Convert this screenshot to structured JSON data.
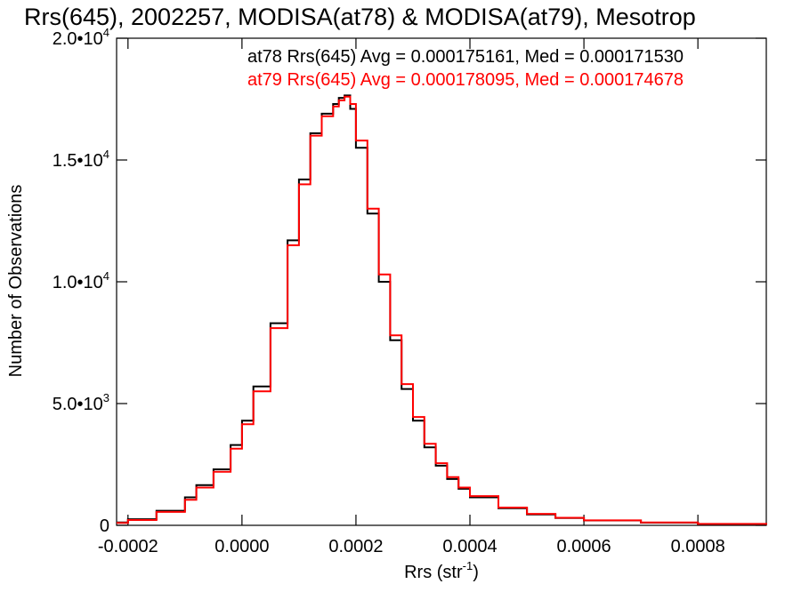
{
  "chart_data": {
    "type": "line",
    "title": "Rrs(645), 2002257, MODISA(at78) & MODISA(at79), Mesotrop",
    "xlabel_main": "Rrs (str",
    "xlabel_sup": "-1",
    "xlabel_end": ")",
    "ylabel": "Number of Observations",
    "xlim": [
      -0.00022,
      0.00092
    ],
    "ylim": [
      0,
      20000
    ],
    "x_ticks": [
      {
        "value": -0.0002,
        "label": "-0.0002"
      },
      {
        "value": 0.0,
        "label": "0.0000"
      },
      {
        "value": 0.0002,
        "label": "0.0002"
      },
      {
        "value": 0.0004,
        "label": "0.0004"
      },
      {
        "value": 0.0006,
        "label": "0.0006"
      },
      {
        "value": 0.0008,
        "label": "0.0008"
      }
    ],
    "y_ticks": [
      {
        "value": 0,
        "mant": "0",
        "exp": ""
      },
      {
        "value": 5000,
        "mant": "5.0•10",
        "exp": "3"
      },
      {
        "value": 10000,
        "mant": "1.0•10",
        "exp": "4"
      },
      {
        "value": 15000,
        "mant": "1.5•10",
        "exp": "4"
      },
      {
        "value": 20000,
        "mant": "2.0•10",
        "exp": "4"
      }
    ],
    "annotations": [
      {
        "text": "at78 Rrs(645) Avg = 0.000175161, Med = 0.000171530",
        "color": "#000000"
      },
      {
        "text": "at79 Rrs(645) Avg = 0.000178095, Med = 0.000174678",
        "color": "#ff0000"
      }
    ],
    "series": [
      {
        "color": "#000000",
        "x": [
          -0.00022,
          -0.0002,
          -0.00015,
          -0.0001,
          -8e-05,
          -5e-05,
          -2e-05,
          0.0,
          2e-05,
          5e-05,
          8e-05,
          0.0001,
          0.00012,
          0.00014,
          0.00016,
          0.00017,
          0.00018,
          0.00019,
          0.0002,
          0.00022,
          0.00024,
          0.00026,
          0.00028,
          0.0003,
          0.00032,
          0.00034,
          0.00036,
          0.00038,
          0.0004,
          0.00045,
          0.0005,
          0.00055,
          0.0006,
          0.0007,
          0.0008,
          0.00092
        ],
        "values": [
          120,
          250,
          600,
          1150,
          1650,
          2300,
          3300,
          4300,
          5700,
          8300,
          11700,
          14200,
          16100,
          16900,
          17300,
          17550,
          17650,
          17100,
          15500,
          12800,
          10000,
          7600,
          5600,
          4300,
          3200,
          2450,
          1900,
          1500,
          1150,
          700,
          450,
          300,
          200,
          110,
          55,
          20
        ]
      },
      {
        "color": "#ff0000",
        "x": [
          -0.00022,
          -0.0002,
          -0.00015,
          -0.0001,
          -8e-05,
          -5e-05,
          -2e-05,
          0.0,
          2e-05,
          5e-05,
          8e-05,
          0.0001,
          0.00012,
          0.00014,
          0.00016,
          0.00017,
          0.00018,
          0.00019,
          0.0002,
          0.00022,
          0.00024,
          0.00026,
          0.00028,
          0.0003,
          0.00032,
          0.00034,
          0.00036,
          0.00038,
          0.0004,
          0.00045,
          0.0005,
          0.00055,
          0.0006,
          0.0007,
          0.0008,
          0.00092
        ],
        "values": [
          100,
          220,
          550,
          1050,
          1550,
          2200,
          3150,
          4150,
          5500,
          8100,
          11500,
          14000,
          16000,
          16800,
          17200,
          17450,
          17600,
          17300,
          15800,
          13000,
          10300,
          7800,
          5800,
          4450,
          3350,
          2550,
          1980,
          1550,
          1200,
          730,
          470,
          310,
          205,
          115,
          58,
          22
        ]
      }
    ]
  }
}
